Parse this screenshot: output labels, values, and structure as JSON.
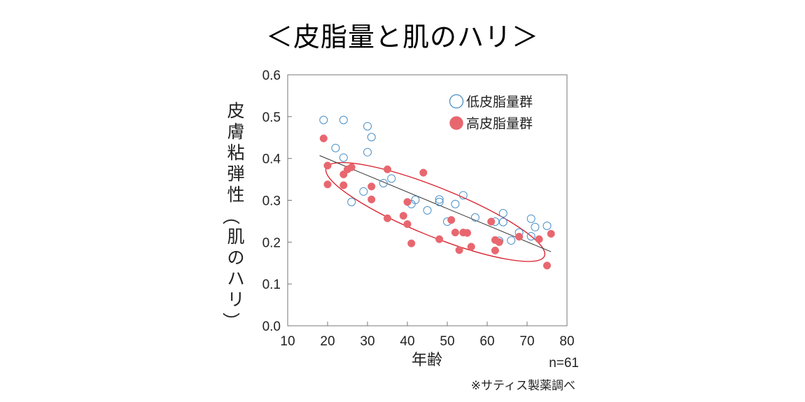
{
  "chart_data": {
    "type": "scatter",
    "title": "＜皮脂量と肌のハリ＞",
    "xlabel": "年齢",
    "ylabel": "皮膚粘弾性（肌のハリ）",
    "xlim": [
      10,
      80
    ],
    "ylim": [
      0.0,
      0.6
    ],
    "x_ticks": [
      "10",
      "20",
      "30",
      "40",
      "50",
      "60",
      "70",
      "80"
    ],
    "y_ticks": [
      "0.0",
      "0.1",
      "0.2",
      "0.3",
      "0.4",
      "0.5",
      "0.6"
    ],
    "grid": false,
    "legend_position": "top-right",
    "series": [
      {
        "name": "低皮脂量群",
        "marker": "open-circle",
        "color": "#4a90c8",
        "points": [
          [
            19,
            0.492
          ],
          [
            22,
            0.425
          ],
          [
            24,
            0.492
          ],
          [
            24,
            0.402
          ],
          [
            26,
            0.296
          ],
          [
            29,
            0.321
          ],
          [
            30,
            0.477
          ],
          [
            31,
            0.451
          ],
          [
            30,
            0.415
          ],
          [
            34,
            0.341
          ],
          [
            36,
            0.352
          ],
          [
            41,
            0.291
          ],
          [
            42,
            0.301
          ],
          [
            45,
            0.276
          ],
          [
            48,
            0.302
          ],
          [
            48,
            0.296
          ],
          [
            50,
            0.249
          ],
          [
            52,
            0.291
          ],
          [
            54,
            0.312
          ],
          [
            57,
            0.259
          ],
          [
            62,
            0.249
          ],
          [
            63,
            0.203
          ],
          [
            64,
            0.269
          ],
          [
            64,
            0.248
          ],
          [
            66,
            0.204
          ],
          [
            68,
            0.223
          ],
          [
            71,
            0.256
          ],
          [
            71,
            0.214
          ],
          [
            72,
            0.236
          ],
          [
            75,
            0.239
          ]
        ]
      },
      {
        "name": "高皮脂量群",
        "marker": "filled-circle",
        "color": "#e8676f",
        "points": [
          [
            19,
            0.448
          ],
          [
            20,
            0.383
          ],
          [
            20,
            0.338
          ],
          [
            24,
            0.362
          ],
          [
            24,
            0.336
          ],
          [
            25,
            0.374
          ],
          [
            26,
            0.379
          ],
          [
            31,
            0.333
          ],
          [
            31,
            0.302
          ],
          [
            35,
            0.374
          ],
          [
            35,
            0.257
          ],
          [
            39,
            0.263
          ],
          [
            40,
            0.296
          ],
          [
            40,
            0.243
          ],
          [
            41,
            0.197
          ],
          [
            44,
            0.366
          ],
          [
            48,
            0.207
          ],
          [
            51,
            0.253
          ],
          [
            52,
            0.223
          ],
          [
            53,
            0.181
          ],
          [
            54,
            0.223
          ],
          [
            56,
            0.189
          ],
          [
            61,
            0.249
          ],
          [
            62,
            0.205
          ],
          [
            62,
            0.18
          ],
          [
            63,
            0.2
          ],
          [
            68,
            0.213
          ],
          [
            73,
            0.207
          ],
          [
            75,
            0.144
          ],
          [
            76,
            0.22
          ],
          [
            55,
            0.222
          ]
        ]
      }
    ],
    "trendline": {
      "x": [
        18,
        76
      ],
      "y": [
        0.407,
        0.177
      ]
    },
    "annotation_ellipse": {
      "center": [
        47,
        0.272
      ],
      "rx_years": 29.5,
      "ry_value": 0.058,
      "rotation_deg": 22,
      "color": "#d81e2a"
    },
    "sample_size_label": "n=61",
    "source_note": "※サティス製薬調べ"
  }
}
